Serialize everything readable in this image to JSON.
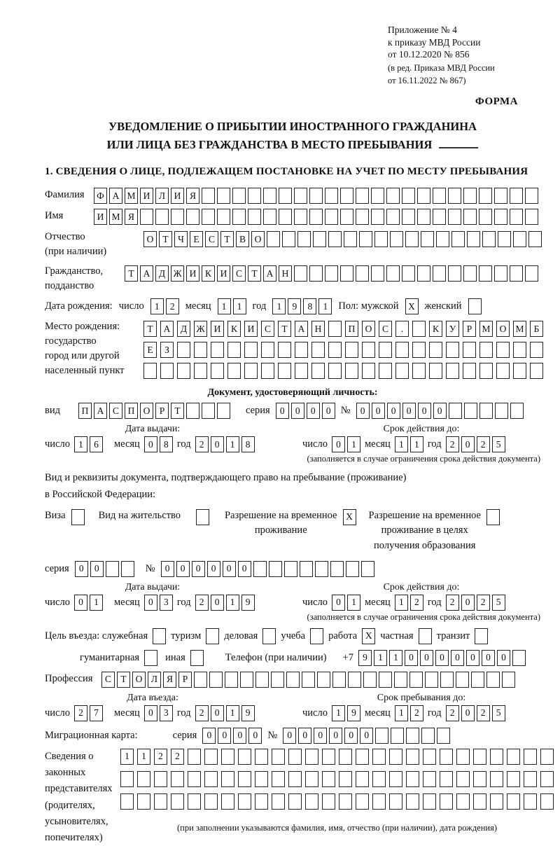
{
  "header": {
    "appendix_lines": [
      "Приложение № 4",
      "к приказу МВД России",
      "от 10.12.2020 № 856"
    ],
    "edition_lines": [
      "(в ред. Приказа МВД России",
      "от 16.11.2022 № 867)"
    ],
    "form_label": "ФОРМА"
  },
  "title": {
    "line1": "УВЕДОМЛЕНИЕ О ПРИБЫТИИ ИНОСТРАННОГО ГРАЖДАНИНА",
    "line2": "ИЛИ ЛИЦА БЕЗ ГРАЖДАНСТВА В МЕСТО ПРЕБЫВАНИЯ"
  },
  "section1_heading": "1. СВЕДЕНИЯ О ЛИЦЕ, ПОДЛЕЖАЩЕМ ПОСТАНОВКЕ НА УЧЕТ ПО МЕСТУ ПРЕБЫВАНИЯ",
  "labels": {
    "surname": "Фамилия",
    "given_name": "Имя",
    "patronymic_1": "Отчество",
    "patronymic_2": "(при наличии)",
    "citizenship_1": "Гражданство,",
    "citizenship_2": "подданство",
    "birth_date": "Дата рождения:",
    "day": "число",
    "month": "месяц",
    "year": "год",
    "sex": "Пол: мужской",
    "female": "женский",
    "birth_place_1": "Место рождения:",
    "birth_place_2": "государство",
    "birth_place_3": "город или другой",
    "birth_place_4": "населенный пункт",
    "identity_doc_heading": "Документ, удостоверяющий личность:",
    "doc_type": "вид",
    "series": "серия",
    "number": "№",
    "issue_date": "Дата выдачи:",
    "expiry_date": "Срок действия до:",
    "expiry_note": "(заполняется в случае ограничения срока действия документа)",
    "resident_doc_line1": "Вид и реквизиты документа, подтверждающего право на пребывание (проживание)",
    "resident_doc_line2": "в Российской Федерации:",
    "visa": "Виза",
    "residence_permit": "Вид на жительство",
    "rvp_1": "Разрешение на временное",
    "rvp_2": "проживание",
    "rvp_edu_1": "Разрешение на временное",
    "rvp_edu_2": "проживание в целях",
    "rvp_edu_3": "получения образования",
    "purpose": "Цель въезда: служебная",
    "tourism": "туризм",
    "business": "деловая",
    "study": "учеба",
    "work": "работа",
    "private": "частная",
    "transit": "транзит",
    "humanitarian": "гуманитарная",
    "other": "иная",
    "phone": "Телефон (при наличии)",
    "phone_prefix": "+7",
    "profession": "Профессия",
    "entry_date": "Дата въезда:",
    "stay_until": "Срок пребывания до:",
    "migration_card": "Миграционная карта:",
    "representatives_1": "Сведения о",
    "representatives_2": "законных",
    "representatives_3": "представителях",
    "representatives_4": "(родителях,",
    "representatives_5": "усыновителях,",
    "representatives_6": "попечителях)",
    "representatives_note": "(при заполнении указываются фамилия, имя, отчество (при наличии), дата рождения)"
  },
  "boxes": {
    "surname": {
      "chars": "ФАМИЛИЯ",
      "total": 29
    },
    "given_name": {
      "chars": "ИМЯ",
      "total": 29
    },
    "patronymic": {
      "chars": "ОТЧЕСТВО",
      "total": 26
    },
    "citizenship": {
      "chars": "ТАДЖИКИСТАН",
      "total": 27
    },
    "birth_day": {
      "chars": "12",
      "total": 2
    },
    "birth_month": {
      "chars": "11",
      "total": 2
    },
    "birth_year": {
      "chars": "1981",
      "total": 4
    },
    "sex_male": {
      "chars": "X",
      "total": 1
    },
    "sex_female": {
      "chars": "",
      "total": 1
    },
    "birth_place_1": {
      "chars": "ТАДЖИКИСТАН ПОС. КУРМОМБ",
      "total": 24
    },
    "birth_place_2": {
      "chars": "ЕЗ",
      "total": 24
    },
    "birth_place_3": {
      "chars": "",
      "total": 24
    },
    "id_doc_type": {
      "chars": "ПАСПОРТ",
      "total": 10
    },
    "id_doc_series": {
      "chars": "0000",
      "total": 4
    },
    "id_doc_number": {
      "chars": "000000",
      "total": 11
    },
    "id_issue_day": {
      "chars": "16",
      "total": 2
    },
    "id_issue_month": {
      "chars": "08",
      "total": 2
    },
    "id_issue_year": {
      "chars": "2018",
      "total": 4
    },
    "id_expiry_day": {
      "chars": "01",
      "total": 2
    },
    "id_expiry_month": {
      "chars": "11",
      "total": 2
    },
    "id_expiry_year": {
      "chars": "2025",
      "total": 4
    },
    "visa_cb": {
      "chars": "",
      "total": 1
    },
    "residence_permit_cb": {
      "chars": "",
      "total": 1
    },
    "rvp_cb": {
      "chars": "X",
      "total": 1
    },
    "rvp_edu_cb": {
      "chars": "",
      "total": 1
    },
    "rvp_series": {
      "chars": "00",
      "total": 4
    },
    "rvp_number": {
      "chars": "000000",
      "total": 14
    },
    "rvp_issue_day": {
      "chars": "01",
      "total": 2
    },
    "rvp_issue_month": {
      "chars": "03",
      "total": 2
    },
    "rvp_issue_year": {
      "chars": "2019",
      "total": 4
    },
    "rvp_expiry_day": {
      "chars": "01",
      "total": 2
    },
    "rvp_expiry_month": {
      "chars": "12",
      "total": 2
    },
    "rvp_expiry_year": {
      "chars": "2025",
      "total": 4
    },
    "purpose_official_cb": {
      "chars": "",
      "total": 1
    },
    "purpose_tourism_cb": {
      "chars": "",
      "total": 1
    },
    "purpose_business_cb": {
      "chars": "",
      "total": 1
    },
    "purpose_study_cb": {
      "chars": "",
      "total": 1
    },
    "purpose_work_cb": {
      "chars": "X",
      "total": 1
    },
    "purpose_private_cb": {
      "chars": "",
      "total": 1
    },
    "purpose_transit_cb": {
      "chars": "",
      "total": 1
    },
    "purpose_humanitarian_cb": {
      "chars": "",
      "total": 1
    },
    "purpose_other_cb": {
      "chars": "",
      "total": 1
    },
    "phone": {
      "chars": "9110000000",
      "total": 11
    },
    "profession": {
      "chars": "СТОЛЯР",
      "total": 27
    },
    "entry_day": {
      "chars": "27",
      "total": 2
    },
    "entry_month": {
      "chars": "03",
      "total": 2
    },
    "entry_year": {
      "chars": "2019",
      "total": 4
    },
    "stay_day": {
      "chars": "19",
      "total": 2
    },
    "stay_month": {
      "chars": "12",
      "total": 2
    },
    "stay_year": {
      "chars": "2025",
      "total": 4
    },
    "migration_series": {
      "chars": "0000",
      "total": 4
    },
    "migration_number": {
      "chars": "000000",
      "total": 11
    },
    "representatives_1": {
      "chars": "1122",
      "total": 26
    },
    "representatives_2": {
      "chars": "",
      "total": 26
    },
    "representatives_3": {
      "chars": "",
      "total": 26
    }
  }
}
